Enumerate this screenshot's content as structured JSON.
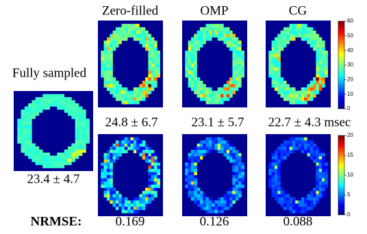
{
  "figure": {
    "reference": {
      "title": "Fully sampled",
      "measurement": "23.4 ± 4.7"
    },
    "methods": [
      {
        "title": "Zero-filled",
        "measurement": "24.8 ± 6.7",
        "nrmse": "0.169"
      },
      {
        "title": "OMP",
        "measurement": "23.1 ± 5.7",
        "nrmse": "0.126"
      },
      {
        "title": "CG",
        "measurement": "22.7 ± 4.3 msec",
        "nrmse": "0.088"
      }
    ],
    "nrmse_label": "NRMSE:",
    "colorbars": [
      {
        "lim": [
          0,
          60
        ],
        "ticks": [
          0,
          10,
          20,
          30,
          40,
          50,
          60
        ]
      },
      {
        "lim": [
          0,
          20
        ],
        "ticks": [
          0,
          5,
          10,
          15,
          20
        ]
      }
    ]
  }
}
